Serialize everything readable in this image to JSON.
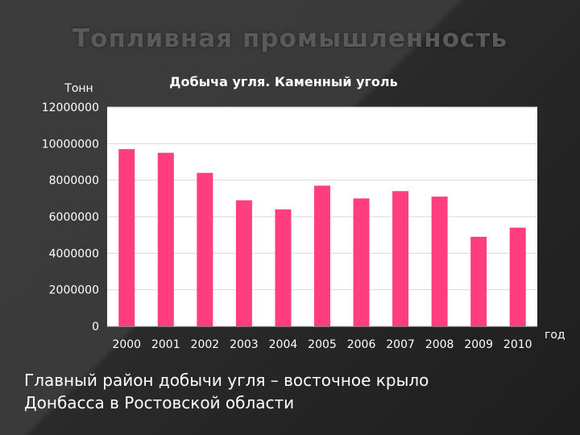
{
  "slide": {
    "title": "Топливная промышленность",
    "caption_line1": "Главный район добычи угля – восточное крыло",
    "caption_line2": "Донбасса в Ростовской области"
  },
  "chart_data": {
    "type": "bar",
    "title": "Добыча угля. Каменный уголь",
    "ylabel": "Тонн",
    "xlabel": "год",
    "categories": [
      "2000",
      "2001",
      "2002",
      "2003",
      "2004",
      "2005",
      "2006",
      "2007",
      "2008",
      "2009",
      "2010"
    ],
    "values": [
      9700000,
      9500000,
      8400000,
      6900000,
      6400000,
      7700000,
      7000000,
      7400000,
      7100000,
      4900000,
      5400000
    ],
    "ylim": [
      0,
      12000000
    ],
    "yticks": [
      "0",
      "2000000",
      "4000000",
      "6000000",
      "8000000",
      "10000000",
      "12000000"
    ],
    "grid": true,
    "legend": "none",
    "bar_color": "#ff3d7f",
    "plot_background": "#ffffff"
  }
}
